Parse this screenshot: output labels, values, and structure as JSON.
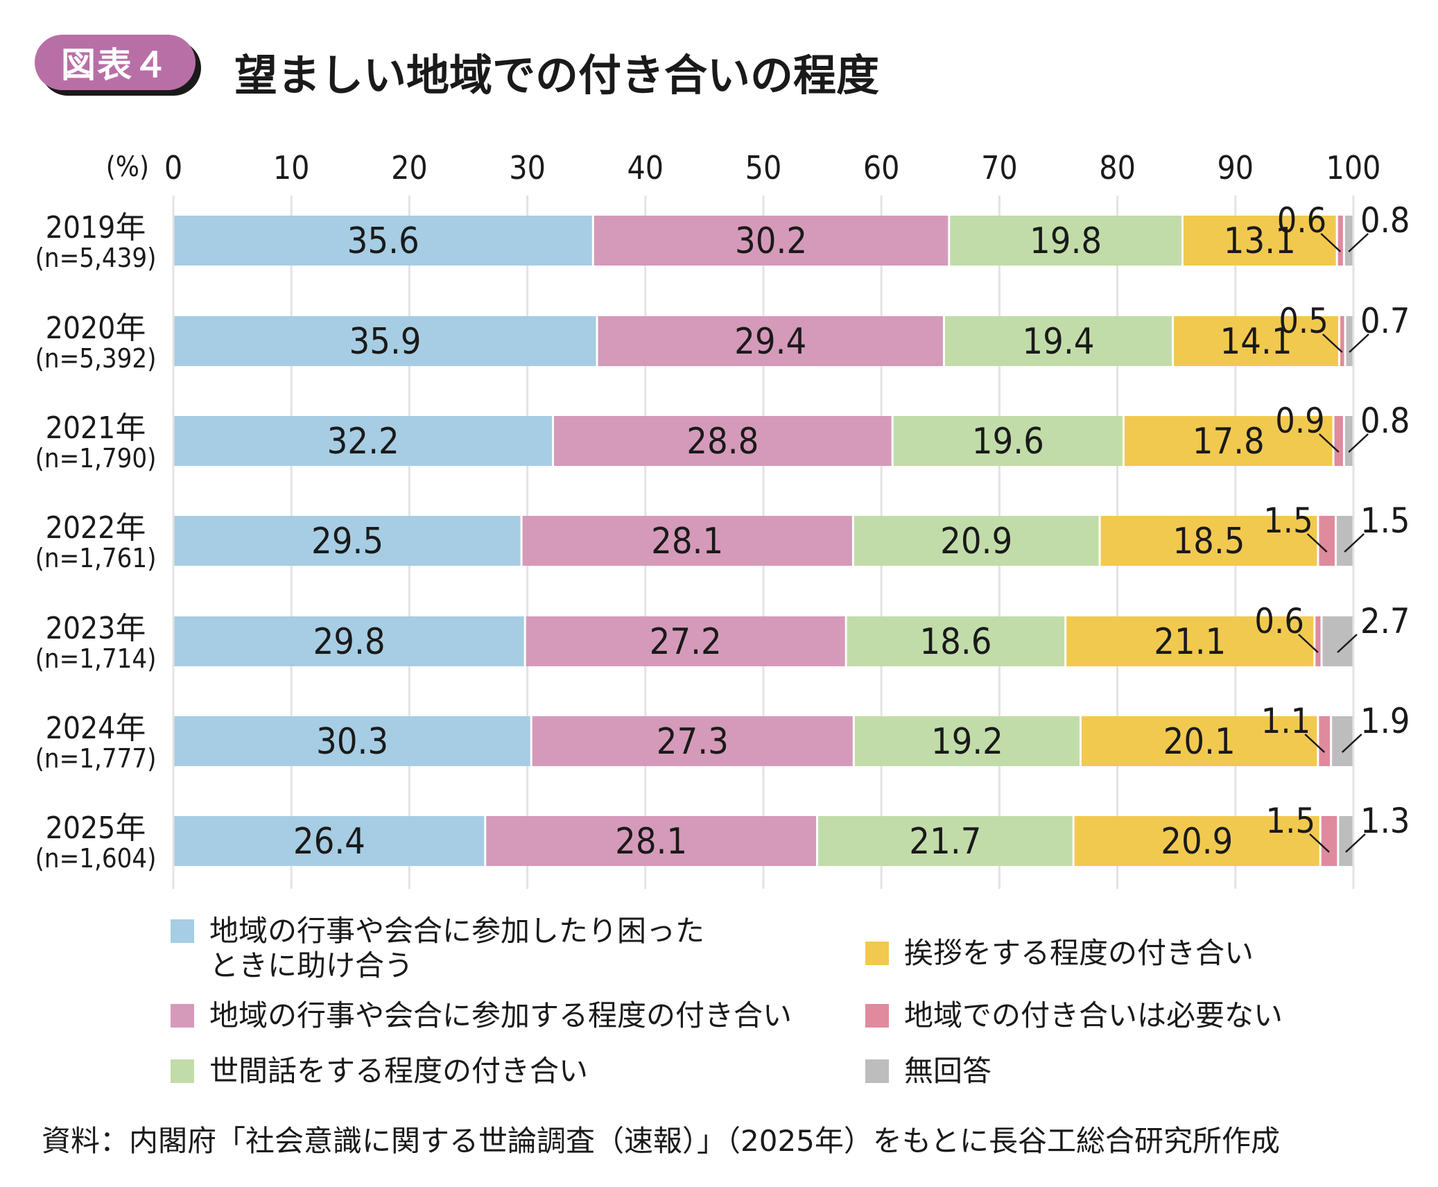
{
  "header": {
    "badge": "図表４",
    "title": "望ましい地域での付き合いの程度"
  },
  "chart_data": {
    "type": "bar",
    "orientation": "horizontal",
    "stacked": true,
    "title": "望ましい地域での付き合いの程度",
    "xlabel": "(%)",
    "ylabel": "",
    "xlim": [
      0,
      100
    ],
    "x_ticks": [
      "0",
      "10",
      "20",
      "30",
      "40",
      "50",
      "60",
      "70",
      "80",
      "90",
      "100"
    ],
    "grid": true,
    "categories": [
      {
        "year": "2019年",
        "n": "(n=5,439)"
      },
      {
        "year": "2020年",
        "n": "(n=5,392)"
      },
      {
        "year": "2021年",
        "n": "(n=1,790)"
      },
      {
        "year": "2022年",
        "n": "(n=1,761)"
      },
      {
        "year": "2023年",
        "n": "(n=1,714)"
      },
      {
        "year": "2024年",
        "n": "(n=1,777)"
      },
      {
        "year": "2025年",
        "n": "(n=1,604)"
      }
    ],
    "series": [
      {
        "name": "地域の行事や会合に参加したり困ったときに助け合う",
        "color": "#a6cde3",
        "values": [
          35.6,
          35.9,
          32.2,
          29.5,
          29.8,
          30.3,
          26.4
        ]
      },
      {
        "name": "地域の行事や会合に参加する程度の付き合い",
        "color": "#d59ab9",
        "values": [
          30.2,
          29.4,
          28.8,
          28.1,
          27.2,
          27.3,
          28.1
        ]
      },
      {
        "name": "世間話をする程度の付き合い",
        "color": "#c1dca9",
        "values": [
          19.8,
          19.4,
          19.6,
          20.9,
          18.6,
          19.2,
          21.7
        ]
      },
      {
        "name": "挨拶をする程度の付き合い",
        "color": "#f2c94f",
        "values": [
          13.1,
          14.1,
          17.8,
          18.5,
          21.1,
          20.1,
          20.9
        ]
      },
      {
        "name": "地域での付き合いは必要ない",
        "color": "#e08a9e",
        "values": [
          0.6,
          0.5,
          0.9,
          1.5,
          0.6,
          1.1,
          1.5
        ]
      },
      {
        "name": "無回答",
        "color": "#bdbdbd",
        "values": [
          0.8,
          0.7,
          0.8,
          1.5,
          2.7,
          1.9,
          1.3
        ]
      }
    ],
    "legend_position": "bottom"
  },
  "legend": [
    {
      "label": "地域の行事や会合に参加したり困った\nときに助け合う",
      "color": "#a6cde3"
    },
    {
      "label": "地域の行事や会合に参加する程度の付き合い",
      "color": "#d59ab9"
    },
    {
      "label": "世間話をする程度の付き合い",
      "color": "#c1dca9"
    },
    {
      "label": "挨拶をする程度の付き合い",
      "color": "#f2c94f"
    },
    {
      "label": "地域での付き合いは必要ない",
      "color": "#e08a9e"
    },
    {
      "label": "無回答",
      "color": "#bdbdbd"
    }
  ],
  "footnote": "資料：内閣府「社会意識に関する世論調査（速報）」（2025年）をもとに長谷工総合研究所作成"
}
